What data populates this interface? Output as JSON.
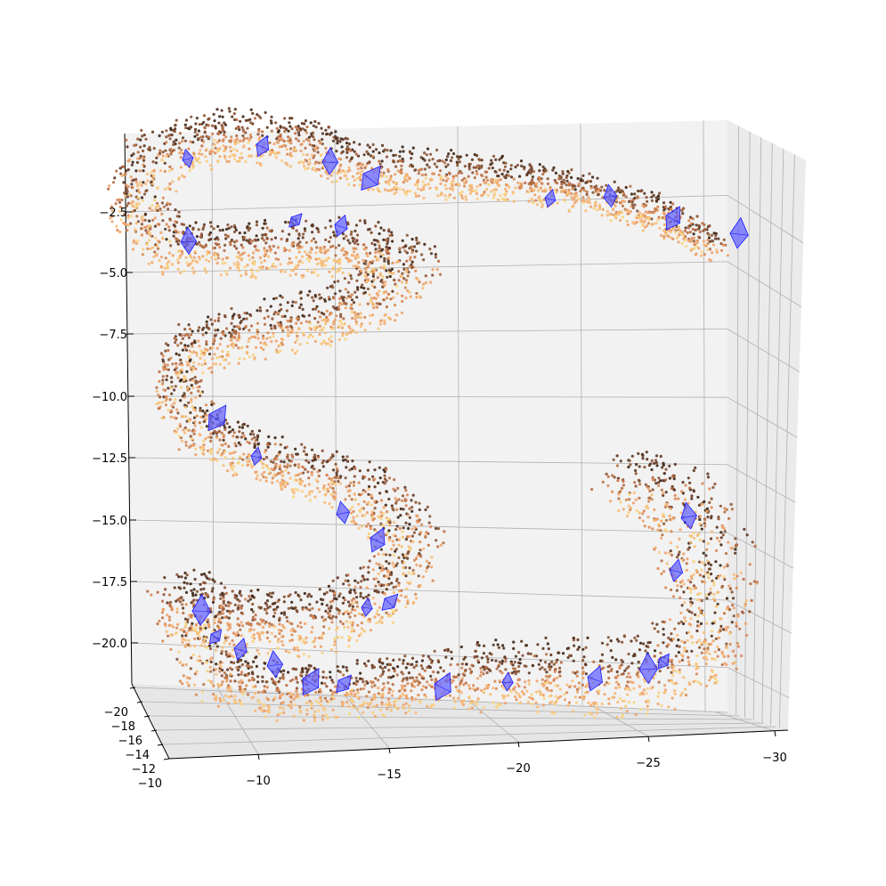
{
  "chart_data": {
    "type": "scatter",
    "projection": "3d",
    "title": "",
    "xlabel": "",
    "ylabel": "",
    "zlabel": "",
    "grid": true,
    "pane_color": "#f2f2f2",
    "grid_color": "#b0b0b0",
    "x_axis": {
      "ticks": [
        -10,
        -15,
        -20,
        -25,
        -30
      ],
      "tick_labels": [
        "−10",
        "−15",
        "−20",
        "−25",
        "−30"
      ]
    },
    "y_axis": {
      "ticks": [
        -20,
        -18,
        -16,
        -14,
        -12,
        -10
      ],
      "tick_labels": [
        "−20",
        "−18",
        "−16",
        "−14",
        "−12",
        "−10"
      ]
    },
    "z_axis": {
      "ticks": [
        -2.5,
        -5.0,
        -7.5,
        -10.0,
        -12.5,
        -15.0,
        -17.5,
        -20.0
      ],
      "tick_labels": [
        "−2.5",
        "−5.0",
        "−7.5",
        "−10.0",
        "−12.5",
        "−15.0",
        "−17.5",
        "−20.0"
      ]
    },
    "series": [
      {
        "kind": "point-cloud",
        "colormap": "copper",
        "colors": [
          "#3a2212",
          "#5c3520",
          "#8a5233",
          "#b86e44",
          "#d98a55",
          "#eea36a",
          "#f6bd77",
          "#f8d27f"
        ]
      },
      {
        "kind": "camera-frustums",
        "face_color": "#6666ff",
        "edge_color": "#1a1aff",
        "count": 30
      }
    ]
  }
}
